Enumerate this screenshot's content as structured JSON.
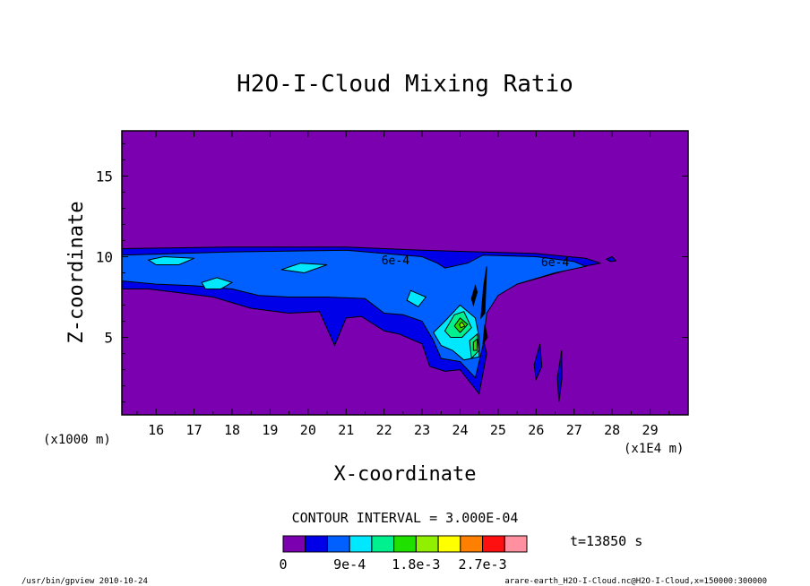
{
  "chart_data": {
    "type": "heatmap",
    "title": "H2O-I-Cloud Mixing Ratio",
    "xlabel": "X-coordinate",
    "ylabel": "Z-coordinate",
    "x_unit_left": "(x1000 m)",
    "x_unit_right": "(x1E4 m)",
    "xlim": [
      15.1,
      30.0
    ],
    "ylim": [
      0.2,
      17.8
    ],
    "x_ticks": [
      16,
      17,
      18,
      19,
      20,
      21,
      22,
      23,
      24,
      25,
      26,
      27,
      28,
      29
    ],
    "y_ticks": [
      5,
      10,
      15
    ],
    "contour_interval_text": "CONTOUR INTERVAL = 3.000E-04",
    "time_text": "t=13850 s",
    "contour_labels": [
      {
        "text": "6e-4",
        "x": 22.3,
        "y": 9.8
      },
      {
        "text": "6e-4",
        "x": 26.5,
        "y": 9.7
      }
    ],
    "colorbar": {
      "levels": [
        0,
        0.0003,
        0.0006,
        0.0009,
        0.0012,
        0.0015,
        0.0018,
        0.0021,
        0.0024,
        0.0027,
        0.003
      ],
      "tick_labels": [
        "0",
        "9e-4",
        "1.8e-3",
        "2.7e-3"
      ],
      "tick_level_index": [
        0,
        3,
        6,
        9
      ],
      "colors": [
        "#7a00b0",
        "#0000e8",
        "#0060ff",
        "#00e8ff",
        "#00f090",
        "#20e000",
        "#90f000",
        "#ffff00",
        "#ff8000",
        "#ff1010",
        "#ff90a0"
      ]
    },
    "regions": [
      {
        "level": 1,
        "points": [
          [
            15.1,
            10.5
          ],
          [
            18,
            10.6
          ],
          [
            21,
            10.6
          ],
          [
            23,
            10.4
          ],
          [
            24.5,
            10.3
          ],
          [
            26,
            10.2
          ],
          [
            27.3,
            9.9
          ],
          [
            27.7,
            9.6
          ],
          [
            27,
            9.3
          ],
          [
            25.5,
            8.3
          ],
          [
            24.8,
            7.5
          ],
          [
            24.5,
            6.0
          ],
          [
            24.7,
            4.0
          ],
          [
            24.5,
            1.5
          ],
          [
            24,
            3.0
          ],
          [
            23.6,
            2.9
          ],
          [
            23.2,
            3.2
          ],
          [
            23,
            4.6
          ],
          [
            22.4,
            5.2
          ],
          [
            22,
            5.4
          ],
          [
            21.4,
            6.3
          ],
          [
            21,
            6.2
          ],
          [
            20.7,
            4.5
          ],
          [
            20.3,
            6.6
          ],
          [
            19.5,
            6.5
          ],
          [
            18.5,
            6.8
          ],
          [
            17.5,
            7.5
          ],
          [
            16.5,
            7.8
          ],
          [
            15.8,
            8.0
          ],
          [
            15.1,
            8.0
          ]
        ]
      },
      {
        "level": 1,
        "points": [
          [
            26.0,
            2.4
          ],
          [
            26.15,
            3.2
          ],
          [
            26.1,
            4.6
          ],
          [
            25.95,
            3.3
          ]
        ]
      },
      {
        "level": 1,
        "points": [
          [
            26.6,
            1.0
          ],
          [
            26.68,
            2.5
          ],
          [
            26.67,
            4.2
          ],
          [
            26.56,
            2.5
          ]
        ]
      },
      {
        "level": 1,
        "points": [
          [
            28.0,
            10.0
          ],
          [
            28.1,
            9.75
          ],
          [
            27.95,
            9.7
          ],
          [
            27.85,
            9.85
          ]
        ]
      },
      {
        "level": 2,
        "points": [
          [
            15.1,
            10.1
          ],
          [
            18,
            10.3
          ],
          [
            21,
            10.4
          ],
          [
            23,
            10.0
          ],
          [
            23.4,
            9.6
          ],
          [
            23.6,
            9.3
          ],
          [
            24.2,
            9.6
          ],
          [
            24.6,
            10.1
          ],
          [
            26,
            10.0
          ],
          [
            27,
            9.7
          ],
          [
            27.3,
            9.4
          ],
          [
            26.5,
            9.0
          ],
          [
            25.5,
            8.3
          ],
          [
            25,
            7.6
          ],
          [
            24.7,
            6.5
          ],
          [
            24.6,
            4.5
          ],
          [
            24.4,
            2.5
          ],
          [
            24,
            3.5
          ],
          [
            23.5,
            3.7
          ],
          [
            23.3,
            4.8
          ],
          [
            23,
            6.0
          ],
          [
            22.5,
            6.4
          ],
          [
            22,
            6.5
          ],
          [
            21.5,
            7.4
          ],
          [
            20.5,
            7.5
          ],
          [
            19.5,
            7.5
          ],
          [
            18.7,
            7.6
          ],
          [
            18,
            8.0
          ],
          [
            17,
            8.2
          ],
          [
            16,
            8.3
          ],
          [
            15.1,
            8.5
          ]
        ]
      },
      {
        "level": 3,
        "points": [
          [
            15.8,
            9.8
          ],
          [
            16.2,
            10.0
          ],
          [
            17,
            9.9
          ],
          [
            16.6,
            9.5
          ],
          [
            16.0,
            9.5
          ]
        ]
      },
      {
        "level": 3,
        "points": [
          [
            19.3,
            9.2
          ],
          [
            19.8,
            9.6
          ],
          [
            20.5,
            9.5
          ],
          [
            19.9,
            9.0
          ]
        ]
      },
      {
        "level": 3,
        "points": [
          [
            17.2,
            8.4
          ],
          [
            17.6,
            8.7
          ],
          [
            18.0,
            8.4
          ],
          [
            17.7,
            8.0
          ],
          [
            17.3,
            8.0
          ]
        ]
      },
      {
        "level": 3,
        "points": [
          [
            22.7,
            7.9
          ],
          [
            23.1,
            7.5
          ],
          [
            22.9,
            6.9
          ],
          [
            22.6,
            7.3
          ]
        ]
      },
      {
        "level": 3,
        "points": [
          [
            23.3,
            5.3
          ],
          [
            23.6,
            6.0
          ],
          [
            24.0,
            7.0
          ],
          [
            24.4,
            6.2
          ],
          [
            24.5,
            5.0
          ],
          [
            24.5,
            3.8
          ],
          [
            24.1,
            3.6
          ],
          [
            23.8,
            4.2
          ],
          [
            23.5,
            4.5
          ]
        ]
      },
      {
        "level": 4,
        "points": [
          [
            23.6,
            5.4
          ],
          [
            23.85,
            6.4
          ],
          [
            24.1,
            6.6
          ],
          [
            24.3,
            5.6
          ],
          [
            24.05,
            5.0
          ],
          [
            23.75,
            5.0
          ]
        ]
      },
      {
        "level": 4,
        "points": [
          [
            24.25,
            4.8
          ],
          [
            24.45,
            5.2
          ],
          [
            24.5,
            4.2
          ],
          [
            24.3,
            3.7
          ]
        ]
      },
      {
        "level": 5,
        "points": [
          [
            23.85,
            5.7
          ],
          [
            24.0,
            6.2
          ],
          [
            24.2,
            5.8
          ],
          [
            24.0,
            5.3
          ]
        ]
      },
      {
        "level": 5,
        "points": [
          [
            24.35,
            4.7
          ],
          [
            24.45,
            4.9
          ],
          [
            24.45,
            4.2
          ],
          [
            24.35,
            4.2
          ]
        ]
      },
      {
        "level": 6,
        "points": [
          [
            23.98,
            5.8
          ],
          [
            24.05,
            5.95
          ],
          [
            24.12,
            5.7
          ],
          [
            24.02,
            5.6
          ]
        ]
      }
    ],
    "dark_streaks": [
      {
        "points": [
          [
            24.55,
            6.2
          ],
          [
            24.62,
            8.2
          ],
          [
            24.7,
            9.4
          ],
          [
            24.65,
            6.5
          ]
        ]
      },
      {
        "points": [
          [
            24.3,
            7.4
          ],
          [
            24.4,
            8.2
          ],
          [
            24.45,
            7.8
          ],
          [
            24.35,
            7.0
          ]
        ]
      },
      {
        "points": [
          [
            24.6,
            4.6
          ],
          [
            24.65,
            5.8
          ],
          [
            24.72,
            5.0
          ]
        ]
      }
    ]
  },
  "footer": {
    "left": "/usr/bin/gpview   2010-10-24",
    "right": "arare-earth_H2O-I-Cloud.nc@H2O-I-Cloud,x=150000:300000"
  }
}
